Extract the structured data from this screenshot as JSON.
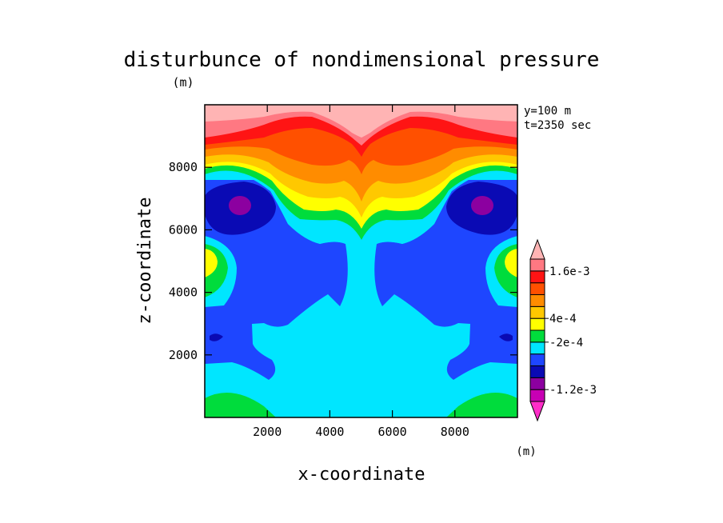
{
  "chart_data": {
    "type": "heatmap",
    "title": "disturbunce of nondimensional pressure",
    "units_label": "(m)",
    "xlabel": "x-coordinate",
    "ylabel": "z-coordinate",
    "xlim": [
      0,
      10000
    ],
    "ylim": [
      0,
      10000
    ],
    "x_ticks": [
      "2000",
      "4000",
      "6000",
      "8000"
    ],
    "y_ticks": [
      "2000",
      "4000",
      "6000",
      "8000"
    ],
    "annotation_lines": [
      "y=100 m",
      "t=2350 sec"
    ],
    "colorbar": {
      "units_label": "(m)",
      "colors": [
        "#ff2dc8",
        "#c800b4",
        "#8c00a0",
        "#0a0ab4",
        "#1e46ff",
        "#00e6ff",
        "#00dc3c",
        "#ffff00",
        "#ffc800",
        "#ff8c00",
        "#ff5000",
        "#ff1414",
        "#ff7882",
        "#ffb4b4"
      ],
      "labels": [
        {
          "text": "1.6e-3",
          "value": 0.0016
        },
        {
          "text": "4e-4",
          "value": 0.0004
        },
        {
          "text": "-2e-4",
          "value": -0.0002
        },
        {
          "text": "-1.2e-3",
          "value": -0.0012
        }
      ]
    }
  }
}
